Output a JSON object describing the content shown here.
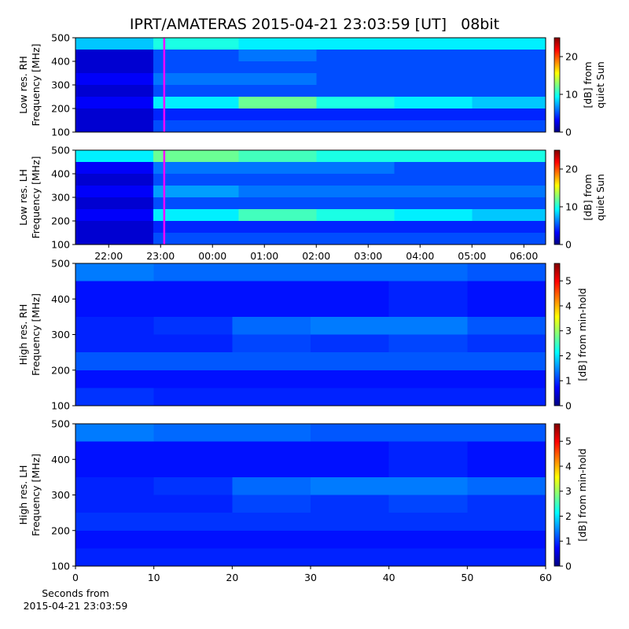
{
  "title": "IPRT/AMATERAS 2015-04-21 23:03:59 [UT]   08bit",
  "chart_data": [
    {
      "type": "heatmap",
      "ylabel": [
        "Low res. RH",
        "Frequency [MHz]"
      ],
      "xlim": [
        21.36,
        30.42
      ],
      "ylim": [
        100,
        500
      ],
      "yticks": [
        100,
        200,
        300,
        400,
        500
      ],
      "x_bins": [
        21.36,
        22.86,
        24.5,
        26,
        27.5,
        29,
        30.42
      ],
      "y_bins": [
        100,
        150,
        200,
        250,
        300,
        350,
        400,
        450,
        500
      ],
      "values": [
        [
          2,
          5,
          5,
          5,
          5,
          5
        ],
        [
          2,
          4,
          4,
          4,
          4,
          4
        ],
        [
          3,
          9,
          12,
          10,
          9,
          8
        ],
        [
          2,
          5,
          5,
          5,
          5,
          5
        ],
        [
          3,
          6,
          6,
          5,
          5,
          5
        ],
        [
          2,
          5,
          5,
          5,
          5,
          5
        ],
        [
          2,
          5,
          6,
          5,
          5,
          5
        ],
        [
          8,
          10,
          9,
          9,
          9,
          9
        ]
      ],
      "clim": [
        0,
        25
      ],
      "cticks": [
        0,
        10,
        20
      ],
      "colorbar_label": [
        "[dB] from",
        "quiet Sun"
      ],
      "marker_x": 23.07,
      "marker_color": "#ff00ff"
    },
    {
      "type": "heatmap",
      "ylabel": [
        "Low res. LH",
        "Frequency [MHz]"
      ],
      "xlim": [
        21.36,
        30.42
      ],
      "ylim": [
        100,
        500
      ],
      "yticks": [
        100,
        200,
        300,
        400,
        500
      ],
      "xticks": [
        {
          "value": 22,
          "label": "22:00"
        },
        {
          "value": 23,
          "label": "23:00"
        },
        {
          "value": 24,
          "label": "00:00"
        },
        {
          "value": 25,
          "label": "01:00"
        },
        {
          "value": 26,
          "label": "02:00"
        },
        {
          "value": 27,
          "label": "03:00"
        },
        {
          "value": 28,
          "label": "04:00"
        },
        {
          "value": 29,
          "label": "05:00"
        },
        {
          "value": 30,
          "label": "06:00"
        }
      ],
      "x_bins": [
        21.36,
        22.86,
        24.5,
        26,
        27.5,
        29,
        30.42
      ],
      "y_bins": [
        100,
        150,
        200,
        250,
        300,
        350,
        400,
        450,
        500
      ],
      "values": [
        [
          2,
          5,
          5,
          5,
          5,
          5
        ],
        [
          2,
          4,
          4,
          4,
          4,
          4
        ],
        [
          3,
          9,
          11,
          10,
          9,
          8
        ],
        [
          2,
          5,
          5,
          5,
          5,
          5
        ],
        [
          3,
          7,
          6,
          6,
          6,
          6
        ],
        [
          2,
          5,
          5,
          5,
          5,
          5
        ],
        [
          3,
          6,
          6,
          6,
          5,
          5
        ],
        [
          9,
          12,
          11,
          10,
          10,
          10
        ]
      ],
      "clim": [
        0,
        25
      ],
      "cticks": [
        0,
        10,
        20
      ],
      "colorbar_label": [
        "[dB] from",
        "quiet Sun"
      ],
      "marker_x": 23.07,
      "marker_color": "#ff00ff"
    },
    {
      "type": "heatmap",
      "ylabel": [
        "High res. RH",
        "Frequency [MHz]"
      ],
      "xlim": [
        0,
        60
      ],
      "ylim": [
        100,
        500
      ],
      "yticks": [
        100,
        200,
        300,
        400,
        500
      ],
      "x_bins": [
        0,
        10,
        20,
        30,
        40,
        50,
        60
      ],
      "y_bins": [
        100,
        150,
        200,
        250,
        300,
        350,
        400,
        450,
        500
      ],
      "values": [
        [
          1.0,
          0.9,
          0.9,
          0.9,
          0.9,
          0.9
        ],
        [
          0.8,
          0.8,
          0.8,
          0.8,
          0.8,
          0.8
        ],
        [
          1.2,
          1.2,
          1.2,
          1.2,
          1.2,
          1.2
        ],
        [
          0.9,
          0.9,
          1.1,
          1.0,
          1.1,
          1.0
        ],
        [
          0.9,
          1.0,
          1.3,
          1.4,
          1.4,
          1.2
        ],
        [
          0.8,
          0.8,
          0.8,
          0.8,
          0.9,
          0.8
        ],
        [
          0.8,
          0.8,
          0.8,
          0.8,
          0.9,
          0.8
        ],
        [
          1.4,
          1.3,
          1.3,
          1.3,
          1.3,
          1.2
        ]
      ],
      "clim": [
        0,
        5.7
      ],
      "cticks": [
        0,
        1,
        2,
        3,
        4,
        5
      ],
      "colorbar_label": [
        "[dB] from min-hold"
      ]
    },
    {
      "type": "heatmap",
      "ylabel": [
        "High res. LH",
        "Frequency [MHz]"
      ],
      "xlim": [
        0,
        60
      ],
      "ylim": [
        100,
        500
      ],
      "yticks": [
        100,
        200,
        300,
        400,
        500
      ],
      "xticks": [
        0,
        10,
        20,
        30,
        40,
        50,
        60
      ],
      "xlabel": [
        "Seconds from",
        "2015-04-21 23:03:59"
      ],
      "x_bins": [
        0,
        10,
        20,
        30,
        40,
        50,
        60
      ],
      "y_bins": [
        100,
        150,
        200,
        250,
        300,
        350,
        400,
        450,
        500
      ],
      "values": [
        [
          0.9,
          0.9,
          0.9,
          0.9,
          0.9,
          0.9
        ],
        [
          0.8,
          0.8,
          0.8,
          0.8,
          0.8,
          0.8
        ],
        [
          1.0,
          1.0,
          1.0,
          1.0,
          1.0,
          1.0
        ],
        [
          0.9,
          0.9,
          1.1,
          1.0,
          1.1,
          1.0
        ],
        [
          0.9,
          1.0,
          1.3,
          1.4,
          1.4,
          1.3
        ],
        [
          0.8,
          0.8,
          0.8,
          0.8,
          0.9,
          0.8
        ],
        [
          0.8,
          0.8,
          0.8,
          0.8,
          0.9,
          0.8
        ],
        [
          1.4,
          1.3,
          1.3,
          1.2,
          1.2,
          1.2
        ]
      ],
      "clim": [
        0,
        5.7
      ],
      "cticks": [
        0,
        1,
        2,
        3,
        4,
        5
      ],
      "colorbar_label": [
        "[dB] from min-hold"
      ]
    }
  ]
}
